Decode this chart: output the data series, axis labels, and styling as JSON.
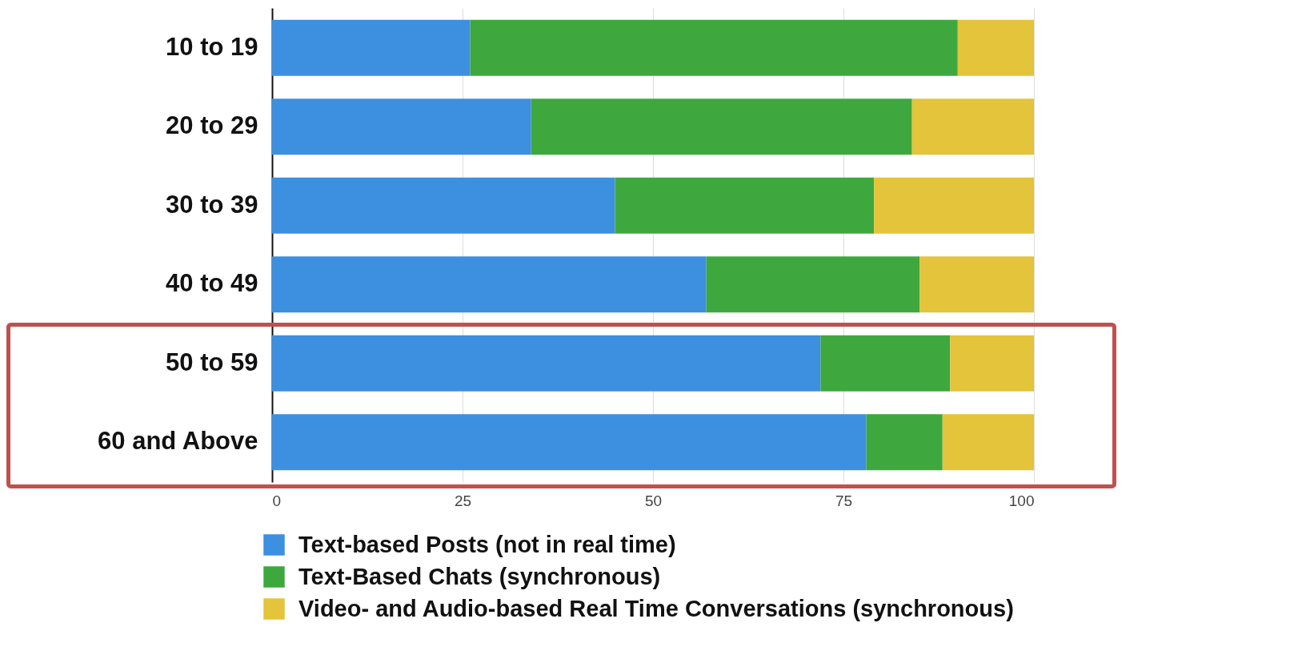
{
  "chart_data": {
    "type": "bar",
    "orientation": "horizontal",
    "stacked": true,
    "categories": [
      "10 to 19",
      "20 to 29",
      "30 to 39",
      "40 to 49",
      "50 to 59",
      "60 and Above"
    ],
    "series": [
      {
        "name": "Text-based Posts (not in real time)",
        "color": "#3d8fe0",
        "values": [
          26,
          34,
          45,
          57,
          72,
          78
        ]
      },
      {
        "name": "Text-Based Chats (synchronous)",
        "color": "#3ea83e",
        "values": [
          64,
          50,
          34,
          28,
          17,
          10
        ]
      },
      {
        "name": "Video- and Audio-based Real Time Conversations (synchronous)",
        "color": "#e3c43a",
        "values": [
          10,
          16,
          21,
          15,
          11,
          12
        ]
      }
    ],
    "xlim": [
      0,
      100
    ],
    "xticks": [
      0,
      25,
      50,
      75,
      100
    ],
    "grid": "x",
    "legend": "bottom"
  }
}
